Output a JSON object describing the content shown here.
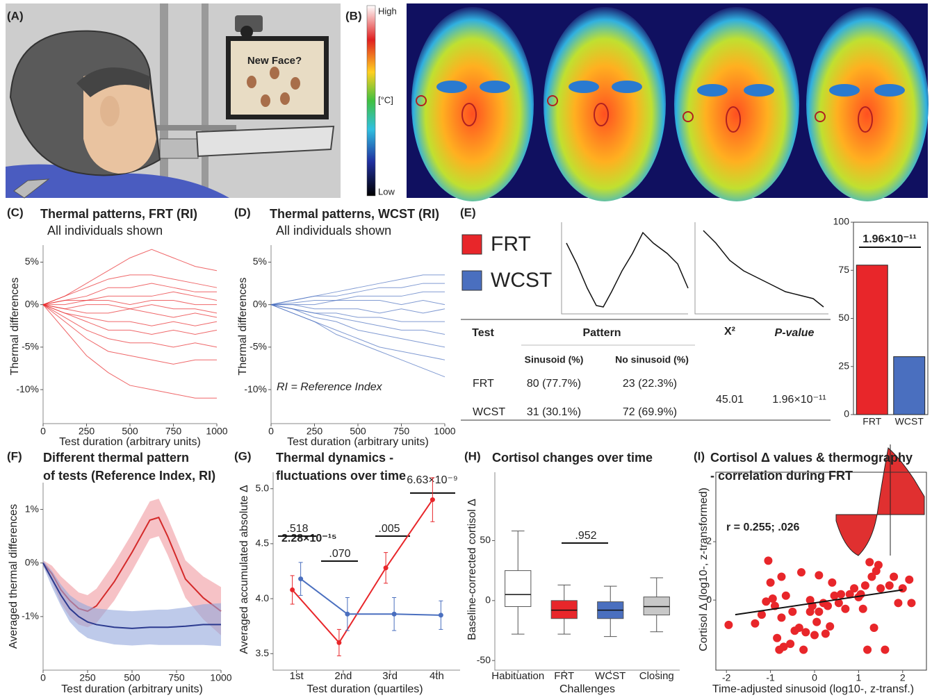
{
  "panel_labels": [
    "(A)",
    "(B)",
    "(C)",
    "(D)",
    "(E)",
    "(F)",
    "(G)",
    "(H)",
    "(I)"
  ],
  "illustration": {
    "screen_text": "New Face?"
  },
  "thermal_scale": {
    "high": "High",
    "unit": "[°C]",
    "low": "Low"
  },
  "table": {
    "headers": [
      "Test",
      "Pattern",
      "X²",
      "P-value"
    ],
    "subheaders": [
      "Sinusoid (%)",
      "No sinusoid (%)"
    ],
    "rows": [
      [
        "FRT",
        "80 (77.7%)",
        "23 (22.3%)"
      ],
      [
        "WCST",
        "31 (30.1%)",
        "72 (69.9%)"
      ]
    ],
    "chi_square": "45.01",
    "p_value": "1.96×10⁻¹¹"
  },
  "chart_data": [
    {
      "type": "line",
      "title": "Thermal patterns, FRT (RI)",
      "subtitle": "All individuals shown",
      "y_label": "Thermal differences",
      "x_label": "Test duration (arbitrary units)",
      "x": [
        0,
        125,
        250,
        375,
        500,
        625,
        750,
        875,
        1000
      ],
      "xlim": [
        0,
        1000
      ],
      "xticks": [
        0,
        250,
        500,
        750,
        1000
      ],
      "ylim": [
        -14,
        7
      ],
      "yticks": [
        {
          "value": 5,
          "label": "5%"
        },
        {
          "value": 0,
          "label": "0%"
        },
        {
          "value": -5,
          "label": "-5%"
        },
        {
          "value": -10,
          "label": "-10%"
        }
      ],
      "series": [
        {
          "color": "#e8262a",
          "values": [
            0,
            1,
            2.5,
            4,
            5.5,
            6.5,
            5.5,
            4.5,
            4
          ]
        },
        {
          "color": "#e8262a",
          "values": [
            0,
            1,
            2,
            3,
            3.5,
            3.5,
            3,
            2.5,
            2
          ]
        },
        {
          "color": "#e8262a",
          "values": [
            0,
            0.5,
            1,
            2,
            2,
            2.5,
            2,
            1.5,
            1.5
          ]
        },
        {
          "color": "#e8262a",
          "values": [
            0,
            0.5,
            0.5,
            1,
            1,
            1,
            1.5,
            1,
            0.5
          ]
        },
        {
          "color": "#e8262a",
          "values": [
            0,
            0,
            0.5,
            0.5,
            0,
            0.5,
            0.5,
            0,
            0
          ]
        },
        {
          "color": "#e8262a",
          "values": [
            0,
            -0.5,
            0,
            0,
            -0.5,
            0,
            -0.5,
            -0.5,
            -1
          ]
        },
        {
          "color": "#e8262a",
          "values": [
            0,
            -0.5,
            -1,
            -1,
            -0.5,
            -1,
            -1.5,
            -1,
            -1.5
          ]
        },
        {
          "color": "#e8262a",
          "values": [
            0,
            -1,
            -1.5,
            -2,
            -2,
            -2.5,
            -2,
            -2.5,
            -2
          ]
        },
        {
          "color": "#e8262a",
          "values": [
            0,
            -1,
            -2,
            -3,
            -3,
            -3.5,
            -3,
            -3.5,
            -3
          ]
        },
        {
          "color": "#e8262a",
          "values": [
            0,
            -1.5,
            -3,
            -4,
            -4.5,
            -4.5,
            -5,
            -4.5,
            -5
          ]
        },
        {
          "color": "#e8262a",
          "values": [
            0,
            -2,
            -4,
            -5.5,
            -6,
            -6.5,
            -7,
            -6.5,
            -6.5
          ]
        },
        {
          "color": "#e8262a",
          "values": [
            0,
            -3,
            -6,
            -8,
            -9.5,
            -10,
            -10.5,
            -11,
            -11
          ]
        }
      ]
    },
    {
      "type": "line",
      "title": "Thermal patterns, WCST (RI)",
      "subtitle": "All individuals shown",
      "y_label": "Thermal differences",
      "x_label": "Test duration (arbitrary units)",
      "annotation": "RI = Reference Index",
      "x": [
        0,
        125,
        250,
        375,
        500,
        625,
        750,
        875,
        1000
      ],
      "xlim": [
        0,
        1000
      ],
      "xticks": [
        0,
        250,
        500,
        750,
        1000
      ],
      "ylim": [
        -14,
        7
      ],
      "yticks": [
        {
          "value": 5,
          "label": "5%"
        },
        {
          "value": 0,
          "label": "0%"
        },
        {
          "value": -5,
          "label": "-5%"
        },
        {
          "value": -10,
          "label": "-10%"
        }
      ],
      "series": [
        {
          "color": "#4a6fbf",
          "values": [
            0,
            0.5,
            1,
            1.5,
            2,
            2.5,
            3,
            3.5,
            3.5
          ]
        },
        {
          "color": "#4a6fbf",
          "values": [
            0,
            0.5,
            1,
            1,
            1.5,
            2,
            2,
            2.5,
            2.5
          ]
        },
        {
          "color": "#4a6fbf",
          "values": [
            0,
            0.2,
            0.5,
            0.5,
            1,
            1,
            1,
            1.5,
            1.5
          ]
        },
        {
          "color": "#4a6fbf",
          "values": [
            0,
            0,
            0,
            0.5,
            0.5,
            0.5,
            0,
            0.5,
            0
          ]
        },
        {
          "color": "#4a6fbf",
          "values": [
            0,
            0,
            -0.5,
            -0.5,
            -0.5,
            -1,
            -0.5,
            -1,
            -0.5
          ]
        },
        {
          "color": "#4a6fbf",
          "values": [
            0,
            -0.5,
            -1,
            -1,
            -1.5,
            -1.5,
            -2,
            -2,
            -2
          ]
        },
        {
          "color": "#4a6fbf",
          "values": [
            0,
            -0.5,
            -1,
            -1.5,
            -2,
            -2.5,
            -3,
            -3,
            -3.5
          ]
        },
        {
          "color": "#4a6fbf",
          "values": [
            0,
            -0.5,
            -1.5,
            -2,
            -3,
            -3.5,
            -4,
            -4.5,
            -5
          ]
        },
        {
          "color": "#4a6fbf",
          "values": [
            0,
            -1,
            -2,
            -3,
            -4,
            -5,
            -5.5,
            -6,
            -6.5
          ]
        },
        {
          "color": "#4a6fbf",
          "values": [
            0,
            -1,
            -2,
            -3.5,
            -4.5,
            -5.5,
            -6.5,
            -7.5,
            -8.5
          ]
        }
      ]
    },
    {
      "type": "bar",
      "categories": [
        "FRT",
        "WCST"
      ],
      "values": [
        77.7,
        30.1
      ],
      "colors": [
        "#e8262a",
        "#4a6fbf"
      ],
      "ylim": [
        0,
        100
      ],
      "yticks": [
        0,
        25,
        50,
        75,
        100
      ],
      "annotation": "1.96×10⁻¹¹"
    },
    {
      "type": "line",
      "title": [
        "Different thermal pattern",
        "of tests (Reference Index, RI)"
      ],
      "y_label": "Averaged thermal differences",
      "x_label": "Test duration (arbitrary units)",
      "x": [
        0,
        50,
        100,
        150,
        200,
        250,
        300,
        400,
        500,
        600,
        650,
        700,
        800,
        900,
        1000
      ],
      "xlim": [
        0,
        1000
      ],
      "xticks": [
        0,
        250,
        500,
        750,
        1000
      ],
      "ylim": [
        -2,
        1.5
      ],
      "yticks": [
        {
          "value": 1,
          "label": "1%"
        },
        {
          "value": 0,
          "label": "0%"
        },
        {
          "value": -1,
          "label": "-1%"
        }
      ],
      "series": [
        {
          "color": "#d42a2a",
          "band_color": "#f09aa0",
          "values": [
            0,
            -0.2,
            -0.5,
            -0.7,
            -0.85,
            -0.9,
            -0.8,
            -0.35,
            0.2,
            0.8,
            0.85,
            0.5,
            -0.3,
            -0.65,
            -0.9
          ],
          "errors": [
            0.05,
            0.15,
            0.25,
            0.3,
            0.3,
            0.3,
            0.32,
            0.35,
            0.35,
            0.35,
            0.35,
            0.35,
            0.35,
            0.4,
            0.45
          ]
        },
        {
          "color": "#2b3a8f",
          "band_color": "#93a6dc",
          "values": [
            0,
            -0.3,
            -0.6,
            -0.85,
            -1.0,
            -1.1,
            -1.15,
            -1.2,
            -1.22,
            -1.2,
            -1.2,
            -1.2,
            -1.18,
            -1.15,
            -1.15
          ],
          "errors": [
            0.05,
            0.15,
            0.2,
            0.25,
            0.28,
            0.3,
            0.3,
            0.32,
            0.32,
            0.32,
            0.33,
            0.33,
            0.35,
            0.38,
            0.4
          ]
        }
      ]
    },
    {
      "type": "line",
      "title": [
        "Thermal dynamics -",
        "fluctuations over time"
      ],
      "y_label": "Averaged accumulated absolute Δ",
      "x_label": "Test duration (quartiles)",
      "categories": [
        "1st",
        "2nd",
        "3rd",
        "4th"
      ],
      "ylim": [
        3.35,
        5.15
      ],
      "yticks": [
        3.5,
        {
          "value": 4,
          "label": "4.0"
        },
        4.5,
        {
          "value": 5,
          "label": "5.0"
        }
      ],
      "series": [
        {
          "color": "#e8262a",
          "values": [
            4.08,
            3.6,
            4.28,
            4.9
          ],
          "errors": [
            0.13,
            0.12,
            0.14,
            0.2
          ]
        },
        {
          "color": "#4a6fbf",
          "values": [
            4.18,
            3.86,
            3.86,
            3.85
          ],
          "errors": [
            0.15,
            0.15,
            0.15,
            0.13
          ]
        }
      ],
      "annotations": [
        "2.28×10⁻¹⁵",
        ".518",
        ".070",
        ".005",
        "6.63×10⁻⁹"
      ]
    },
    {
      "type": "box",
      "title": "Cortisol changes over time",
      "y_label": "Baseline-corrected cortisol Δ",
      "x_label": "Challenges",
      "categories": [
        "Habituation",
        "FRT",
        "WCST",
        "Closing"
      ],
      "ylim": [
        -58,
        107
      ],
      "yticks": [
        -50,
        0,
        50
      ],
      "colors": [
        "#ffffff",
        "#e8262a",
        "#4a6fbf",
        "#c8c8c8"
      ],
      "boxes": [
        {
          "min": -28,
          "q1": -5,
          "median": 5,
          "q3": 25,
          "max": 58
        },
        {
          "min": -28,
          "q1": -15,
          "median": -8,
          "q3": 0,
          "max": 13
        },
        {
          "min": -30,
          "q1": -15,
          "median": -8,
          "q3": -1,
          "max": 12
        },
        {
          "min": -26,
          "q1": -12,
          "median": -5,
          "q3": 3,
          "max": 19
        }
      ],
      "annotations": [
        ".952"
      ]
    },
    {
      "type": "scatter",
      "title": [
        "Cortisol Δ values & thermography",
        "- correlation during FRT"
      ],
      "y_label": "Cortisol Δ (log10-, z-transformed)",
      "x_label": "Time-adjusted sinusoid (log10-, z-transf.)",
      "annotations": [
        "r = 0.255; .026"
      ],
      "color": "#e8262a",
      "xlim": [
        -2.24,
        2.54
      ],
      "xticks": [
        -2,
        -1,
        0,
        1,
        2
      ],
      "ylim": [
        -2.4,
        4.38
      ],
      "yticks": [
        0,
        2
      ],
      "x": [
        -1.95,
        -1.35,
        -1.2,
        -1.1,
        -1.05,
        -1.0,
        -0.95,
        -0.9,
        -0.85,
        -0.8,
        -0.75,
        -0.75,
        -0.7,
        -0.65,
        -0.55,
        -0.5,
        -0.45,
        -0.35,
        -0.3,
        -0.25,
        -0.2,
        -0.1,
        -0.1,
        -0.05,
        0.0,
        0.05,
        0.1,
        0.1,
        0.2,
        0.25,
        0.3,
        0.35,
        0.4,
        0.45,
        0.55,
        0.6,
        0.7,
        0.8,
        0.9,
        1.0,
        1.05,
        1.1,
        1.15,
        1.2,
        1.25,
        1.3,
        1.35,
        1.4,
        1.45,
        1.5,
        1.6,
        1.7,
        1.8,
        1.9,
        2.0,
        2.15,
        2.2
      ],
      "y": [
        -0.85,
        -0.8,
        -0.5,
        -0.05,
        1.35,
        0.6,
        0.05,
        -0.2,
        -1.3,
        -1.7,
        0.8,
        -0.6,
        -1.6,
        0.15,
        -1.5,
        -0.4,
        -1.05,
        -0.95,
        0.95,
        -1.7,
        -1.1,
        0.0,
        -0.4,
        -0.2,
        -1.2,
        -0.75,
        -0.4,
        0.85,
        -0.1,
        -1.15,
        -0.2,
        -0.9,
        0.6,
        0.15,
        -0.1,
        0.2,
        -0.3,
        0.2,
        0.4,
        0.1,
        0.2,
        -0.3,
        0.5,
        -1.7,
        1.3,
        0.8,
        -0.95,
        1.0,
        1.2,
        0.4,
        -1.7,
        0.5,
        0.8,
        -0.1,
        0.4,
        0.7,
        -0.1
      ],
      "trend": {
        "x": [
          -1.8,
          2
        ],
        "y": [
          -0.5,
          0.35
        ]
      }
    }
  ]
}
